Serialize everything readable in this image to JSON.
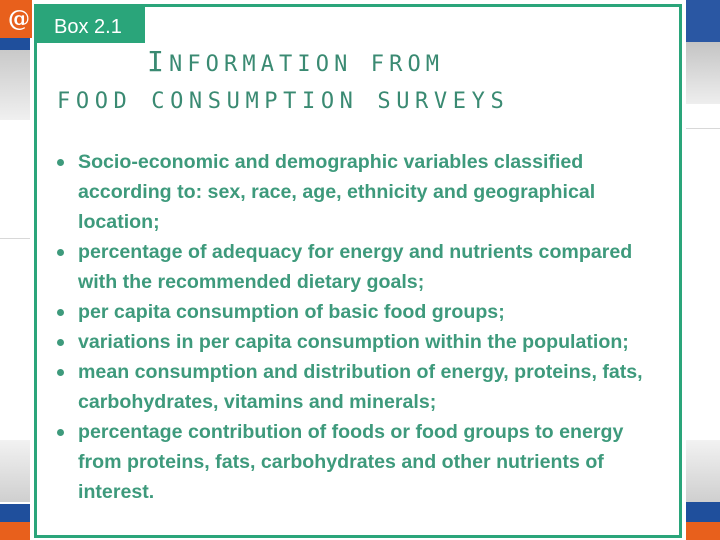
{
  "box": {
    "label": "Box 2.1",
    "title_line1_initial": "I",
    "title_line1_rest": "NFORMATION FROM",
    "title_line2": "FOOD CONSUMPTION SURVEYS",
    "bullets": [
      "Socio-economic and demographic variables classified according to: sex, race, age, ethnicity and geographical location;",
      "percentage of adequacy for energy and nutrients compared with the recommended dietary goals;",
      "per capita consumption of basic food groups;",
      "variations in per capita consumption within the population;",
      "mean consumption and distribution of energy, proteins, fats, carbohydrates, vitamins and minerals;",
      "percentage contribution of foods or food groups to energy from proteins, fats, carbohydrates and other nutrients of interest."
    ]
  },
  "colors": {
    "accent_green": "#2aa57a",
    "text_green": "#3e9a7c",
    "slide_blue": "#1f4f9c",
    "slide_orange": "#e8601c"
  },
  "background": {
    "logo_icon": "circle-logo-icon"
  }
}
